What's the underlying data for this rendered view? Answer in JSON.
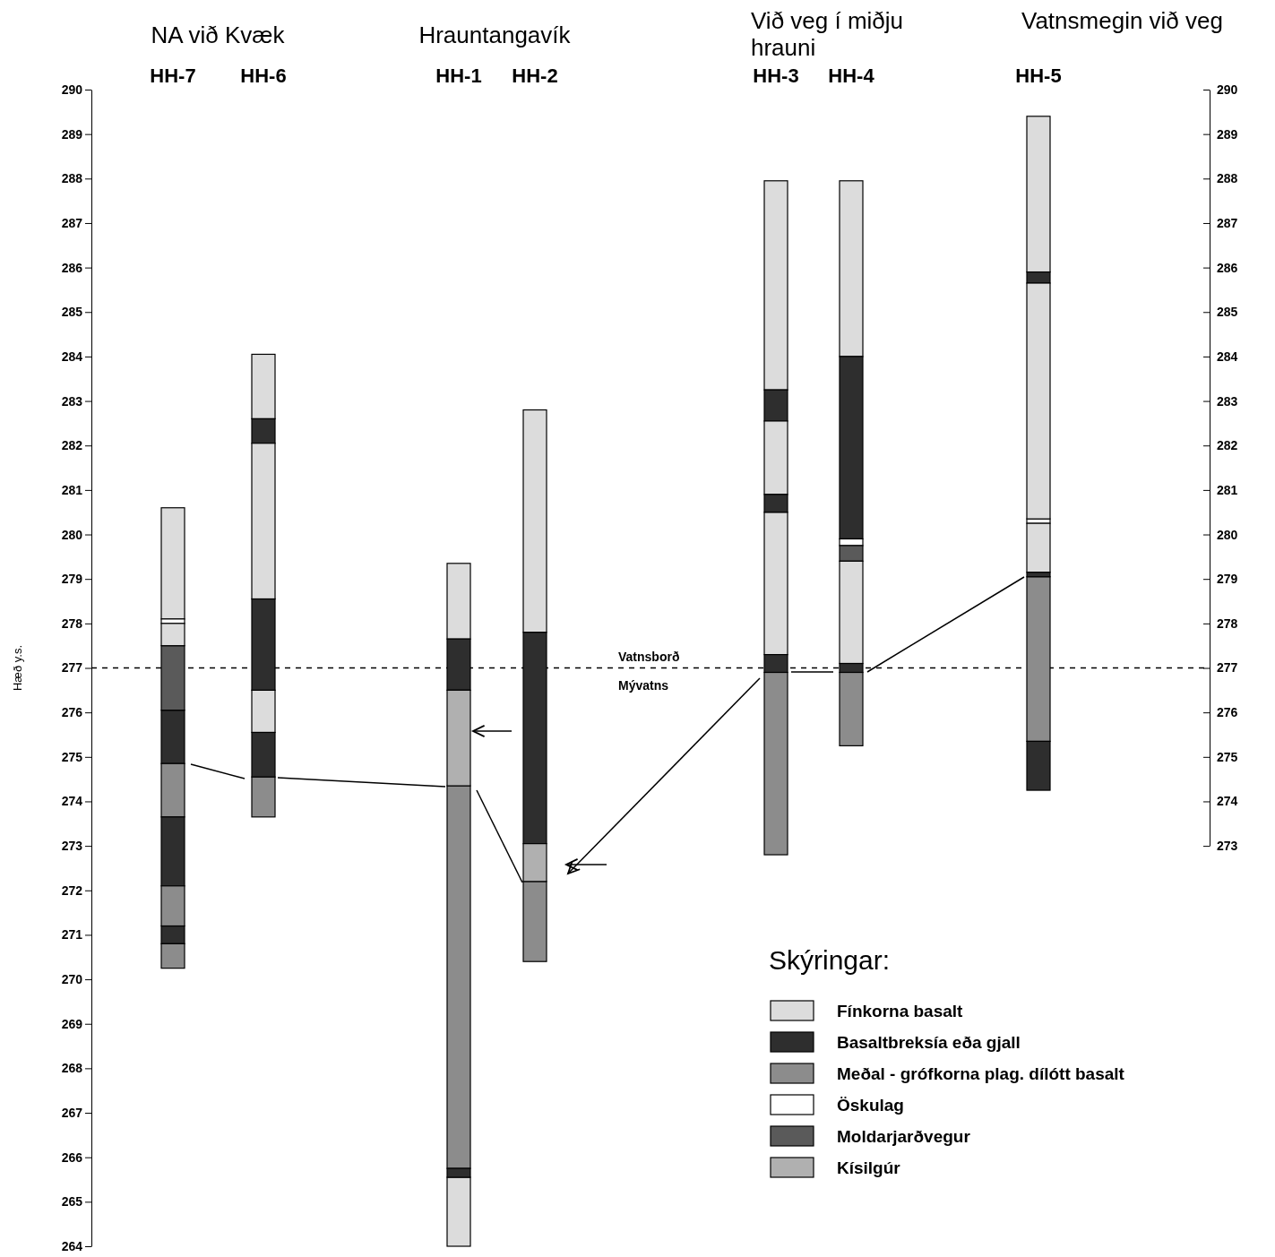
{
  "chart_data": {
    "type": "bar",
    "ylabel": "Hæð y.s.",
    "legend_title": "Skýringar:",
    "legend": "bottom right",
    "categories": [
      "HH-7",
      "HH-6",
      "HH-1",
      "HH-2",
      "HH-3",
      "HH-4",
      "HH-5"
    ],
    "ylim": [
      264,
      290
    ],
    "yticks": [
      264,
      265,
      266,
      267,
      268,
      269,
      270,
      271,
      272,
      273,
      274,
      275,
      276,
      277,
      278,
      279,
      280,
      281,
      282,
      283,
      284,
      285,
      286,
      287,
      288,
      289,
      290
    ],
    "y2lim": [
      273,
      290
    ],
    "y2ticks": [
      273,
      274,
      275,
      276,
      277,
      278,
      279,
      280,
      281,
      282,
      283,
      284,
      285,
      286,
      287,
      288,
      289,
      290
    ],
    "annotations": [
      "NA við Kvæk",
      "Hrauntangavík",
      "Við veg í miðju hrauni",
      "Vatnsmegin við veg"
    ],
    "ref_lines": [
      {
        "axis": "y",
        "value": 277,
        "label": "Vatnsborð Mývatns",
        "line_style": "dashed",
        "color": "#000000"
      }
    ],
    "series": [
      {
        "name": "Fínkorna basalt",
        "color": "#dcdcdc",
        "base": [
          278.1,
          282.6,
          277.65,
          277.8,
          283.25,
          284.0,
          285.9
        ],
        "values": [
          2.5,
          1.45,
          1.7,
          5.0,
          4.7,
          3.95,
          3.5
        ]
      },
      {
        "name": "Basaltbreksía eða gjall",
        "color": "#2e2e2e",
        "base": [
          274.85,
          282.05,
          276.5,
          273.05,
          282.55,
          279.9,
          285.65
        ],
        "values": [
          1.2,
          0.55,
          1.15,
          4.75,
          0.7,
          4.1,
          0.25
        ]
      },
      {
        "name": "Meðal - grófkorna plag. dílótt basalt",
        "color": "#8c8c8c",
        "base": [
          273.65,
          273.65,
          265.75,
          270.4,
          272.8,
          275.25,
          275.35
        ],
        "values": [
          1.2,
          0.9,
          8.6,
          1.8,
          4.1,
          1.65,
          3.7
        ]
      },
      {
        "name": "Öskulag",
        "color": "#ffffff",
        "base": [
          278.0,
          null,
          null,
          null,
          null,
          279.75,
          280.25
        ],
        "values": [
          0.1,
          null,
          null,
          null,
          null,
          0.15,
          0.1
        ]
      },
      {
        "name": "Moldarjarðvegur",
        "color": "#5a5a5a",
        "base": [
          276.05,
          null,
          null,
          null,
          null,
          279.4,
          null
        ],
        "values": [
          1.45,
          null,
          null,
          null,
          null,
          0.35,
          null
        ]
      },
      {
        "name": "Kísilgúr",
        "color": "#b0b0b0",
        "base": [
          null,
          null,
          274.35,
          272.2,
          null,
          null,
          null
        ],
        "values": [
          null,
          null,
          2.15,
          0.85,
          null,
          null,
          null
        ]
      },
      {
        "color": "#dcdcdc",
        "base": [
          277.5,
          278.55,
          264,
          null,
          280.9,
          277.1,
          280.35
        ],
        "values": [
          0.5,
          3.5,
          1.55,
          null,
          1.65,
          2.3,
          5.3
        ]
      },
      {
        "color": "#dcdcdc",
        "base": [
          null,
          275.55,
          null,
          null,
          277.3,
          null,
          279.15
        ],
        "values": [
          null,
          0.95,
          null,
          null,
          3.2,
          null,
          1.1
        ]
      },
      {
        "color": "#2e2e2e",
        "base": [
          272.1,
          276.5,
          265.55,
          null,
          280.5,
          276.9,
          279.05
        ],
        "values": [
          1.55,
          2.05,
          0.2,
          null,
          0.4,
          0.2,
          0.1
        ]
      },
      {
        "color": "#2e2e2e",
        "base": [
          270.8,
          274.55,
          null,
          null,
          276.9,
          null,
          274.25
        ],
        "values": [
          0.4,
          1.0,
          null,
          null,
          0.4,
          null,
          1.1
        ]
      },
      {
        "color": "#8c8c8c",
        "base": [
          271.2,
          null,
          null,
          null,
          null,
          null,
          null
        ],
        "values": [
          0.9,
          null,
          null,
          null,
          null,
          null,
          null
        ]
      },
      {
        "color": "#8c8c8c",
        "base": [
          270.25,
          null,
          null,
          null,
          null,
          null,
          null
        ],
        "values": [
          0.55,
          null,
          null,
          null,
          null,
          null,
          null
        ]
      }
    ]
  }
}
